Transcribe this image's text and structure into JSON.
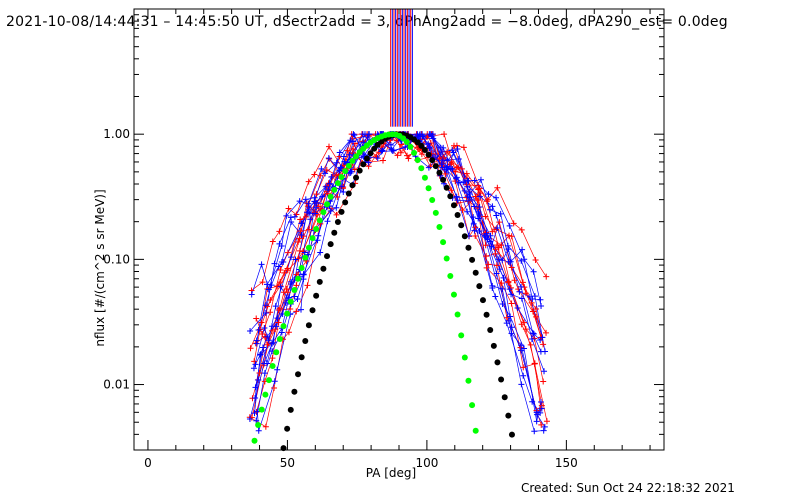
{
  "title": "2021-10-08/14:44:31 – 14:45:50 UT, dSectr2add = 3, dPhAng2add = −8.0deg, dPA290_est=  0.0deg",
  "footer": "Created: Sun Oct 24 22:18:32 2021",
  "chart_data": {
    "type": "scatter",
    "xlabel": "PA [deg]",
    "ylabel": "nflux [#/(cm^2 s sr MeV)]",
    "xlim": [
      -5,
      185
    ],
    "ylim": [
      0.003,
      10
    ],
    "yscale": "log",
    "x_ticks": [
      0,
      50,
      100,
      150
    ],
    "x_tick_labels": [
      "0",
      "50",
      "100",
      "150"
    ],
    "y_ticks": [
      0.01,
      0.1,
      1.0
    ],
    "y_tick_labels": [
      "0.01",
      "0.10",
      "1.00"
    ],
    "grid": false,
    "series": [
      {
        "color": "#000000",
        "marker": "circle",
        "model": "black",
        "x_range": [
          20,
          150
        ]
      },
      {
        "color": "#00ff00",
        "marker": "circle",
        "model": "green",
        "x_range": [
          20,
          140
        ]
      },
      {
        "color": "#ff0000",
        "marker": "plus",
        "model": "red",
        "x_range": [
          38,
          142
        ]
      },
      {
        "color": "#0000ff",
        "marker": "plus",
        "model": "blue",
        "x_range": [
          38,
          142
        ]
      }
    ],
    "sector_marks_x": [
      87,
      87.6,
      88.2,
      88.8,
      89.4,
      90,
      90.6,
      91.2,
      91.8,
      92.4,
      93,
      93.6,
      94.2,
      94.8
    ]
  }
}
